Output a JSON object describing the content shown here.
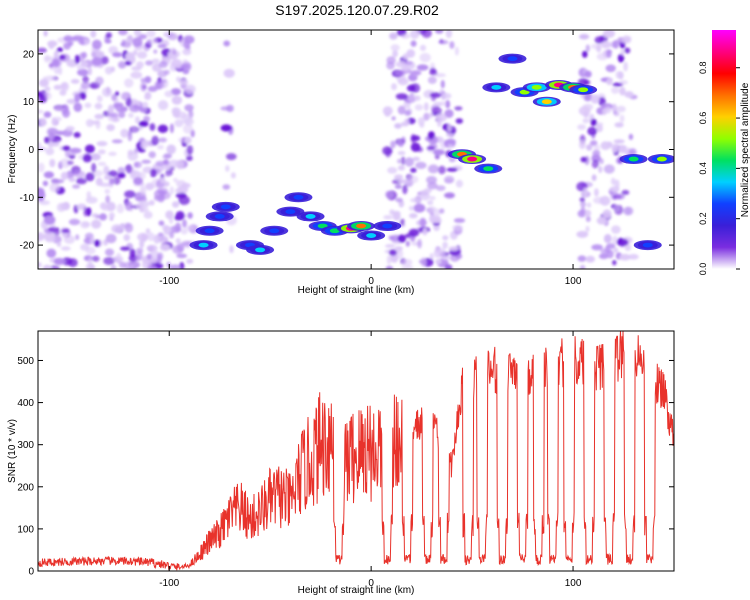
{
  "title": "S197.2025.120.07.29.R02",
  "colors": {
    "snr_line": "#e8322b",
    "grid_axis": "#000000",
    "colorbar": [
      "#ffffff",
      "#7a2de0",
      "#3a1fd8",
      "#1040ff",
      "#00d0ff",
      "#00e060",
      "#90ff00",
      "#ffd000",
      "#ff7000",
      "#ff0000",
      "#ff0080",
      "#ff00ff"
    ]
  },
  "chart_data": [
    {
      "type": "heatmap",
      "xlabel": "Height of straight line (km)",
      "ylabel": "Frequency (Hz)",
      "xlim": [
        -165,
        150
      ],
      "ylim": [
        -25,
        25
      ],
      "xticks": [
        -100,
        0,
        100
      ],
      "xtick_labels": [
        "-100",
        "0",
        "100"
      ],
      "yticks": [
        -20,
        -10,
        0,
        10,
        20
      ],
      "ytick_labels": [
        "-20",
        "-10",
        "0",
        "10",
        "20"
      ],
      "colorbar": {
        "label": "Normalized spectral amplitude",
        "range": [
          0.0,
          0.95
        ],
        "ticks": [
          0.0,
          0.2,
          0.4,
          0.6,
          0.8
        ],
        "tick_labels": [
          "0.0",
          "0.2",
          "0.4",
          "0.6",
          "0.8"
        ]
      },
      "blobs": [
        {
          "x": -80,
          "y": -17,
          "amp": 0.3
        },
        {
          "x": -83,
          "y": -20,
          "amp": 0.35
        },
        {
          "x": -72,
          "y": -12,
          "amp": 0.3
        },
        {
          "x": -75,
          "y": -14,
          "amp": 0.25
        },
        {
          "x": -60,
          "y": -20,
          "amp": 0.3
        },
        {
          "x": -55,
          "y": -21,
          "amp": 0.35
        },
        {
          "x": -48,
          "y": -17,
          "amp": 0.3
        },
        {
          "x": -40,
          "y": -13,
          "amp": 0.3
        },
        {
          "x": -36,
          "y": -10,
          "amp": 0.25
        },
        {
          "x": -30,
          "y": -14,
          "amp": 0.35
        },
        {
          "x": -24,
          "y": -16,
          "amp": 0.45
        },
        {
          "x": -18,
          "y": -17,
          "amp": 0.4
        },
        {
          "x": -10,
          "y": -16.5,
          "amp": 0.85
        },
        {
          "x": -5,
          "y": -16,
          "amp": 0.7
        },
        {
          "x": 0,
          "y": -18,
          "amp": 0.35
        },
        {
          "x": 8,
          "y": -16,
          "amp": 0.3
        },
        {
          "x": 45,
          "y": -1,
          "amp": 0.7
        },
        {
          "x": 50,
          "y": -2,
          "amp": 0.85
        },
        {
          "x": 58,
          "y": -4,
          "amp": 0.4
        },
        {
          "x": 62,
          "y": 13,
          "amp": 0.35
        },
        {
          "x": 70,
          "y": 19,
          "amp": 0.3
        },
        {
          "x": 76,
          "y": 12,
          "amp": 0.5
        },
        {
          "x": 82,
          "y": 13,
          "amp": 0.55
        },
        {
          "x": 87,
          "y": 10,
          "amp": 0.6
        },
        {
          "x": 93,
          "y": 13.5,
          "amp": 0.85
        },
        {
          "x": 100,
          "y": 13,
          "amp": 0.65
        },
        {
          "x": 105,
          "y": 12.5,
          "amp": 0.5
        },
        {
          "x": 130,
          "y": -2,
          "amp": 0.45
        },
        {
          "x": 144,
          "y": -2,
          "amp": 0.5
        },
        {
          "x": 137,
          "y": -20,
          "amp": 0.3
        }
      ]
    },
    {
      "type": "line",
      "xlabel": "Height of straight line (km)",
      "ylabel": "SNR (10 * v/v)",
      "xlim": [
        -165,
        150
      ],
      "ylim": [
        0,
        570
      ],
      "xticks": [
        -100,
        0,
        100
      ],
      "xtick_labels": [
        "-100",
        "0",
        "100"
      ],
      "yticks": [
        0,
        100,
        200,
        300,
        400,
        500
      ],
      "ytick_labels": [
        "0",
        "100",
        "200",
        "300",
        "400",
        "500"
      ],
      "series": [
        {
          "x": [
            -165,
            -150,
            -135,
            -120,
            -110,
            -95,
            -90,
            -85,
            -80,
            -75,
            -70,
            -65,
            -60,
            -55,
            -50,
            -45,
            -40,
            -35,
            -30,
            -25,
            -20,
            -15,
            -10,
            -5,
            -1,
            1,
            5,
            10,
            15,
            18,
            20,
            25,
            27,
            30,
            35,
            40,
            45,
            50,
            55,
            60,
            65,
            70,
            75,
            80,
            85,
            90,
            95,
            100,
            105,
            110,
            115,
            120,
            125,
            130,
            135,
            140,
            145,
            150
          ],
          "y": [
            20,
            22,
            24,
            23,
            21,
            8,
            14,
            40,
            70,
            90,
            130,
            150,
            120,
            140,
            170,
            180,
            160,
            230,
            260,
            300,
            320,
            250,
            270,
            280,
            300,
            280,
            300,
            310,
            330,
            350,
            340,
            350,
            370,
            380,
            300,
            250,
            440,
            460,
            470,
            475,
            480,
            485,
            480,
            470,
            480,
            490,
            495,
            500,
            495,
            485,
            490,
            500,
            520,
            510,
            490,
            460,
            420,
            320
          ]
        }
      ],
      "dropouts": [
        -16,
        8,
        18,
        28,
        36,
        48,
        55,
        65,
        75,
        83,
        90,
        98,
        108,
        118,
        128,
        138
      ]
    }
  ]
}
